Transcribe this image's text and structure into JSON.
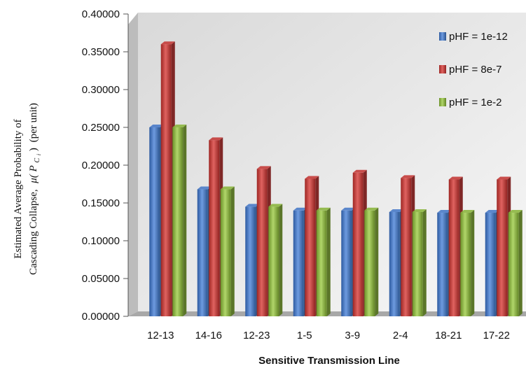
{
  "chart_data": {
    "type": "bar",
    "title": "",
    "xlabel": "Sensitive Transmission Line",
    "ylabel_line1": "Estimated Average Probability of",
    "ylabel_line2_prefix": "Cascading Collapse,",
    "ylabel_mu": "μ(",
    "ylabel_P": "P",
    "ylabel_sub": "C",
    "ylabel_subsub": "i",
    "ylabel_close": ")",
    "ylabel_unit": "(per unit)",
    "ylim": [
      0,
      0.4
    ],
    "ytick_step": 0.05,
    "ytick_labels": [
      "0.00000",
      "0.05000",
      "0.10000",
      "0.15000",
      "0.20000",
      "0.25000",
      "0.30000",
      "0.35000",
      "0.40000"
    ],
    "grid": false,
    "legend_position": "top-right",
    "categories": [
      "12-13",
      "14-16",
      "12-23",
      "1-5",
      "3-9",
      "2-4",
      "18-21",
      "17-22"
    ],
    "series": [
      {
        "name": "pHF = 1e-12",
        "color": "#4a7bc8",
        "values": [
          0.25,
          0.168,
          0.145,
          0.14,
          0.14,
          0.138,
          0.137,
          0.137
        ]
      },
      {
        "name": "pHF = 8e-7",
        "color": "#c43c3a",
        "values": [
          0.36,
          0.233,
          0.195,
          0.182,
          0.19,
          0.183,
          0.181,
          0.181
        ]
      },
      {
        "name": "pHF = 1e-2",
        "color": "#8cb63f",
        "values": [
          0.25,
          0.168,
          0.145,
          0.14,
          0.14,
          0.138,
          0.137,
          0.137
        ]
      }
    ]
  }
}
